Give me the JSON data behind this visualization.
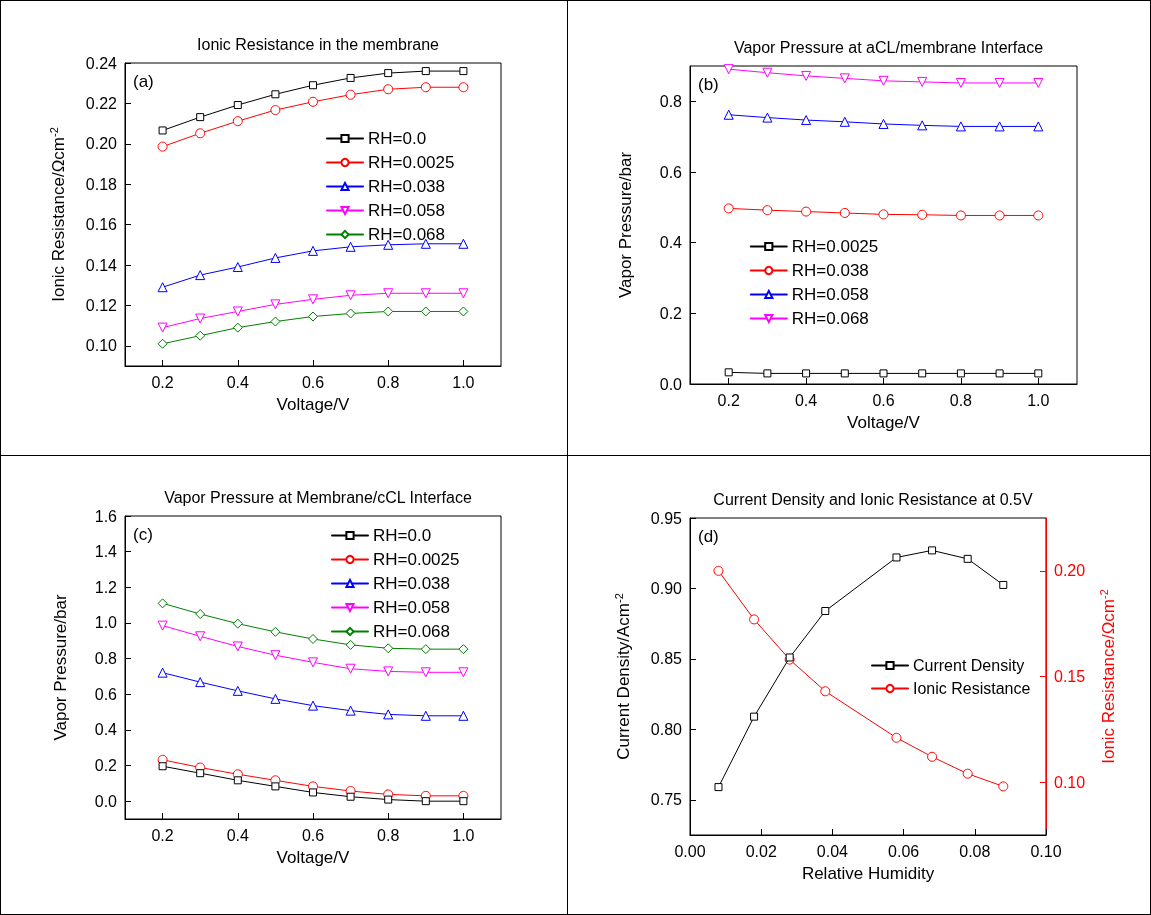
{
  "chart_data": [
    {
      "type": "line",
      "title": "Ionic Resistance in the membrane",
      "xlabel": "Voltage/V",
      "ylabel": "Ionic Resistance/Ωcm$^{-2}$",
      "annotations": [
        "(a)"
      ],
      "legend": "right",
      "x": [
        0.2,
        0.3,
        0.4,
        0.5,
        0.6,
        0.7,
        0.8,
        0.9,
        1.0
      ],
      "xlim": [
        0.1,
        1.1
      ],
      "xticks": [
        0.2,
        0.4,
        0.6,
        0.8,
        {
          "value": 1,
          "label": "1.0"
        }
      ],
      "ylim": [
        0.09,
        0.24
      ],
      "yticks": [
        {
          "value": 0.1,
          "label": "0.10"
        },
        0.12,
        0.14,
        0.16,
        0.18,
        {
          "value": 0.2,
          "label": "0.20"
        },
        0.22,
        0.24
      ],
      "series": [
        {
          "name": "RH=0.0",
          "color": "#000000",
          "marker": "square",
          "values": [
            0.2066,
            0.2132,
            0.2192,
            0.2245,
            0.229,
            0.2326,
            0.235,
            0.236,
            0.236
          ]
        },
        {
          "name": "RH=0.0025",
          "color": "#ff0000",
          "marker": "circle",
          "values": [
            0.1986,
            0.2052,
            0.2112,
            0.2167,
            0.2208,
            0.2243,
            0.227,
            0.228,
            0.228
          ]
        },
        {
          "name": "RH=0.038",
          "color": "#0000ff",
          "marker": "triangle",
          "values": [
            0.129,
            0.135,
            0.139,
            0.1435,
            0.147,
            0.149,
            0.15,
            0.1505,
            0.1505
          ]
        },
        {
          "name": "RH=0.058",
          "color": "#ff00ff",
          "marker": "triangle-down",
          "values": [
            0.109,
            0.1135,
            0.117,
            0.1205,
            0.123,
            0.125,
            0.126,
            0.126,
            0.126
          ]
        },
        {
          "name": "RH=0.068",
          "color": "#008000",
          "marker": "diamond",
          "values": [
            0.101,
            0.105,
            0.109,
            0.112,
            0.1145,
            0.116,
            0.117,
            0.117,
            0.117
          ]
        }
      ]
    },
    {
      "type": "line",
      "title": "Vapor Pressure at aCL/membrane Interface",
      "xlabel": "Voltage/V",
      "ylabel": "Vapor Pressure/bar",
      "annotations": [
        "(b)"
      ],
      "legend": "bottom",
      "x": [
        0.2,
        0.3,
        0.4,
        0.5,
        0.6,
        0.7,
        0.8,
        0.9,
        1.0
      ],
      "xlim": [
        0.1,
        1.1
      ],
      "xticks": [
        0.2,
        0.4,
        0.6,
        0.8,
        {
          "value": 1,
          "label": "1.0"
        }
      ],
      "ylim": [
        0,
        0.9
      ],
      "yticks": [
        {
          "value": 0,
          "label": "0.0"
        },
        0.2,
        0.4,
        0.6,
        0.8
      ],
      "series": [
        {
          "name": "RH=0.0025",
          "color": "#000000",
          "marker": "square",
          "values": [
            0.033,
            0.03,
            0.03,
            0.03,
            0.03,
            0.03,
            0.03,
            0.03,
            0.03
          ]
        },
        {
          "name": "RH=0.038",
          "color": "#ff0000",
          "marker": "circle",
          "values": [
            0.497,
            0.492,
            0.488,
            0.484,
            0.48,
            0.479,
            0.477,
            0.477,
            0.477
          ]
        },
        {
          "name": "RH=0.058",
          "color": "#0000ff",
          "marker": "triangle",
          "values": [
            0.762,
            0.754,
            0.747,
            0.742,
            0.736,
            0.732,
            0.729,
            0.729,
            0.729
          ]
        },
        {
          "name": "RH=0.068",
          "color": "#ff00ff",
          "marker": "triangle-down",
          "values": [
            0.891,
            0.881,
            0.872,
            0.865,
            0.858,
            0.855,
            0.852,
            0.852,
            0.852
          ]
        }
      ]
    },
    {
      "type": "line",
      "title": "Vapor Pressure at Membrane/cCL Interface",
      "xlabel": "Voltage/V",
      "ylabel": "Vapor Pressure/bar",
      "annotations": [
        "(c)"
      ],
      "legend": "top right",
      "x": [
        0.2,
        0.3,
        0.4,
        0.5,
        0.6,
        0.7,
        0.8,
        0.9,
        1.0
      ],
      "xlim": [
        0.1,
        1.1
      ],
      "xticks": [
        0.2,
        0.4,
        0.6,
        0.8,
        {
          "value": 1,
          "label": "1.0"
        }
      ],
      "ylim": [
        -0.1,
        1.6
      ],
      "yticks": [
        {
          "value": 0,
          "label": "0.0"
        },
        0.2,
        0.4,
        0.6,
        0.8,
        {
          "value": 1,
          "label": "1.0"
        },
        1.2,
        1.4,
        1.6
      ],
      "series": [
        {
          "name": "RH=0.0",
          "color": "#000000",
          "marker": "square",
          "values": [
            0.196,
            0.157,
            0.117,
            0.083,
            0.049,
            0.025,
            0.009,
            0.0,
            0.0
          ]
        },
        {
          "name": "RH=0.0025",
          "color": "#ff0000",
          "marker": "circle",
          "values": [
            0.232,
            0.189,
            0.151,
            0.117,
            0.083,
            0.057,
            0.038,
            0.03,
            0.03
          ]
        },
        {
          "name": "RH=0.038",
          "color": "#0000ff",
          "marker": "triangle",
          "values": [
            0.721,
            0.668,
            0.619,
            0.574,
            0.536,
            0.508,
            0.487,
            0.479,
            0.479
          ]
        },
        {
          "name": "RH=0.058",
          "color": "#ff00ff",
          "marker": "triangle-down",
          "values": [
            0.985,
            0.925,
            0.868,
            0.819,
            0.779,
            0.743,
            0.728,
            0.723,
            0.723
          ]
        },
        {
          "name": "RH=0.068",
          "color": "#008000",
          "marker": "diamond",
          "values": [
            1.11,
            1.05,
            0.996,
            0.95,
            0.91,
            0.877,
            0.858,
            0.853,
            0.853
          ]
        }
      ]
    },
    {
      "type": "line",
      "title": "Current Density and Ionic Resistance at 0.5V",
      "xlabel": "Relative Humidity",
      "ylabel": "Current Density/Acm$^{-2}$",
      "y2label": "Ionic Resistance/Ωcm$^{-2}$",
      "annotations": [
        "(d)"
      ],
      "legend": "right",
      "x": [
        0.008,
        0.018,
        0.028,
        0.038,
        0.058,
        0.068,
        0.078,
        0.088
      ],
      "xlim": [
        0,
        0.1
      ],
      "xticks": [
        {
          "value": 0,
          "label": "0.00"
        },
        0.02,
        0.04,
        0.06,
        0.08,
        {
          "value": 0.1,
          "label": "0.10"
        }
      ],
      "ylim": [
        0.725,
        0.95
      ],
      "yticks": [
        0.75,
        {
          "value": 0.8,
          "label": "0.80"
        },
        0.85,
        {
          "value": 0.9,
          "label": "0.90"
        },
        0.95
      ],
      "y2lim": [
        0.075,
        0.225
      ],
      "y2ticks": [
        {
          "value": 0.1,
          "label": "0.10"
        },
        0.15,
        {
          "value": 0.2,
          "label": "0.20"
        }
      ],
      "series": [
        {
          "name": "Current Density",
          "color": "#000000",
          "marker": "square",
          "values": [
            0.759,
            0.809,
            0.851,
            0.884,
            0.922,
            0.927,
            0.921,
            0.9025
          ]
        },
        {
          "name": "Ionic Resistance",
          "color": "#ff0000",
          "marker": "circle",
          "axis": "y2",
          "values": [
            0.2,
            0.177,
            0.158,
            0.143,
            0.121,
            0.112,
            0.104,
            0.098
          ]
        }
      ]
    }
  ]
}
